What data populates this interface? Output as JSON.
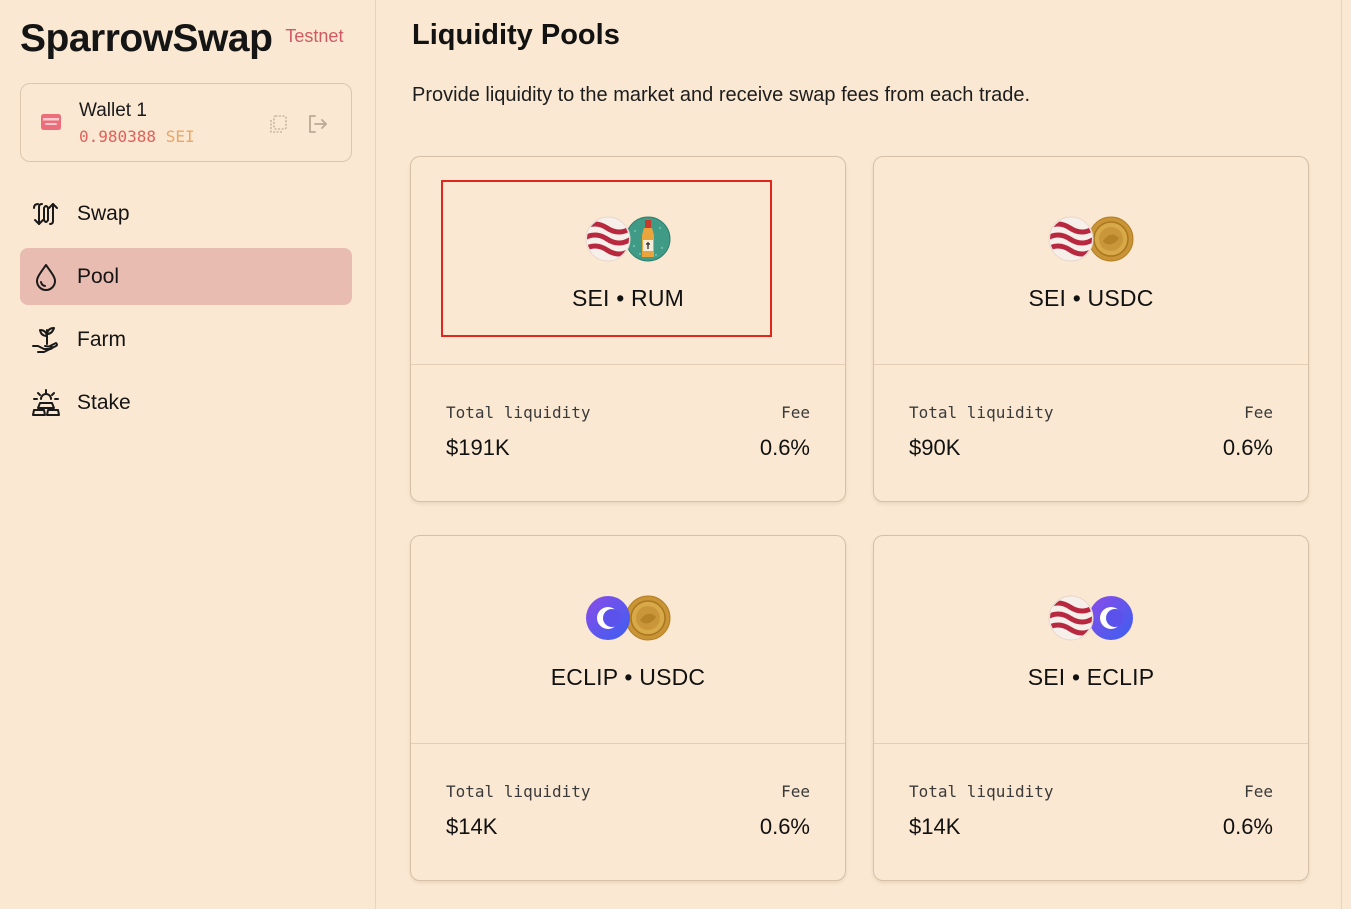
{
  "brand": {
    "title": "SparrowSwap",
    "badge": "Testnet"
  },
  "wallet": {
    "name": "Wallet 1",
    "balance": "0.980388",
    "unit": "SEI",
    "copy_icon": "copy-icon",
    "logout_icon": "logout-icon"
  },
  "nav": {
    "items": [
      {
        "label": "Swap",
        "icon": "swap-arrows-icon"
      },
      {
        "label": "Pool",
        "icon": "droplet-icon",
        "active": true
      },
      {
        "label": "Farm",
        "icon": "plant-hand-icon"
      },
      {
        "label": "Stake",
        "icon": "stake-bars-icon"
      }
    ]
  },
  "page": {
    "title": "Liquidity Pools",
    "subtitle": "Provide liquidity to the market and receive swap fees from each trade."
  },
  "pools": [
    {
      "pair": "SEI • RUM",
      "liquidity_label": "Total liquidity",
      "liquidity": "$191K",
      "fee_label": "Fee",
      "fee": "0.6%"
    },
    {
      "pair": "SEI • USDC",
      "liquidity_label": "Total liquidity",
      "liquidity": "$90K",
      "fee_label": "Fee",
      "fee": "0.6%"
    },
    {
      "pair": "ECLIP • USDC",
      "liquidity_label": "Total liquidity",
      "liquidity": "$14K",
      "fee_label": "Fee",
      "fee": "0.6%"
    },
    {
      "pair": "SEI • ECLIP",
      "liquidity_label": "Total liquidity",
      "liquidity": "$14K",
      "fee_label": "Fee",
      "fee": "0.6%"
    }
  ],
  "colors": {
    "background": "#fae8d2",
    "active_nav": "#e8bcb1",
    "accent": "#e0615a",
    "highlight": "#e0271d"
  }
}
